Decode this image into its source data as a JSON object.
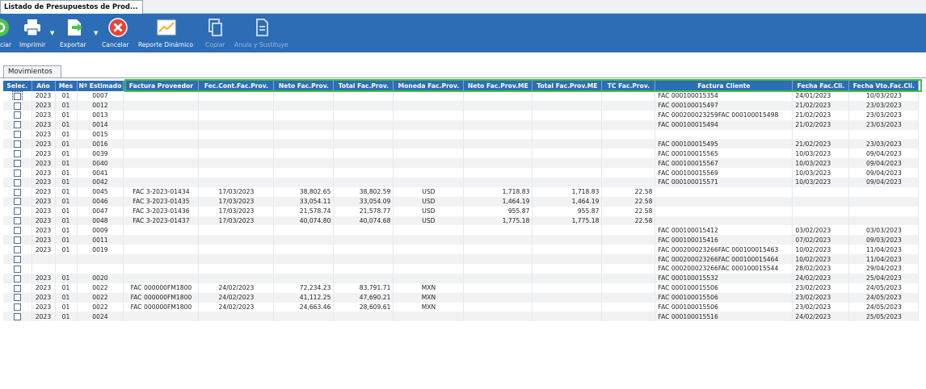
{
  "window": {
    "tab_title": "Listado de Presupuestos de Prod..."
  },
  "toolbar": {
    "buttons": [
      {
        "label": "ciar",
        "icon": "refresh-icon"
      },
      {
        "label": "Imprimir",
        "icon": "printer-icon"
      },
      {
        "label": "Exportar",
        "icon": "export-icon"
      },
      {
        "label": "Cancelar",
        "icon": "cancel-icon"
      },
      {
        "label": "Reporte Dinámico",
        "icon": "chart-icon"
      },
      {
        "label": "Copiar",
        "icon": "copy-icon"
      },
      {
        "label": "Anula y Sustituye",
        "icon": "replace-icon"
      }
    ]
  },
  "tabs": [
    {
      "label": "Movimientos"
    }
  ],
  "grid": {
    "columns": [
      "Selec.",
      "Año",
      "Mes",
      "Nº Estimado",
      "Factura Proveedor",
      "Fec.Cont.Fac.Prov.",
      "Neto Fac.Prov.",
      "Total Fac.Prov.",
      "Moneda Fac.Prov.",
      "Neto Fac.Prov.ME",
      "Total Fac.Prov.ME",
      "TC Fac.Prov.",
      "Factura Cliente",
      "Fecha Fac.Cli.",
      "Fecha Vto.Fac.Cli."
    ],
    "rows": [
      [
        "",
        "2023",
        "01",
        "0007",
        "",
        "",
        "",
        "",
        "",
        "",
        "",
        "",
        "FAC 000100015354",
        "24/01/2023",
        "10/03/2023"
      ],
      [
        "",
        "2023",
        "01",
        "0012",
        "",
        "",
        "",
        "",
        "",
        "",
        "",
        "",
        "FAC 000100015497",
        "21/02/2023",
        "23/03/2023"
      ],
      [
        "",
        "2023",
        "01",
        "0013",
        "",
        "",
        "",
        "",
        "",
        "",
        "",
        "",
        "FAC 000200023259FAC 000100015498",
        "21/02/2023",
        "23/03/2023"
      ],
      [
        "",
        "2023",
        "01",
        "0014",
        "",
        "",
        "",
        "",
        "",
        "",
        "",
        "",
        "FAC 000100015494",
        "21/02/2023",
        "23/03/2023"
      ],
      [
        "",
        "2023",
        "01",
        "0015",
        "",
        "",
        "",
        "",
        "",
        "",
        "",
        "",
        "",
        "",
        ""
      ],
      [
        "",
        "2023",
        "01",
        "0016",
        "",
        "",
        "",
        "",
        "",
        "",
        "",
        "",
        "FAC 000100015495",
        "21/02/2023",
        "23/03/2023"
      ],
      [
        "",
        "2023",
        "01",
        "0039",
        "",
        "",
        "",
        "",
        "",
        "",
        "",
        "",
        "FAC 000100015565",
        "10/03/2023",
        "09/04/2023"
      ],
      [
        "",
        "2023",
        "01",
        "0040",
        "",
        "",
        "",
        "",
        "",
        "",
        "",
        "",
        "FAC 000100015567",
        "10/03/2023",
        "09/04/2023"
      ],
      [
        "",
        "2023",
        "01",
        "0041",
        "",
        "",
        "",
        "",
        "",
        "",
        "",
        "",
        "FAC 000100015569",
        "10/03/2023",
        "09/04/2023"
      ],
      [
        "",
        "2023",
        "01",
        "0042",
        "",
        "",
        "",
        "",
        "",
        "",
        "",
        "",
        "FAC 000100015571",
        "10/03/2023",
        "09/04/2023"
      ],
      [
        "",
        "2023",
        "01",
        "0045",
        "FAC 3-2023-01434",
        "17/03/2023",
        "38,802.65",
        "38,802.59",
        "USD",
        "1,718.83",
        "1,718.83",
        "22.58",
        "",
        "",
        ""
      ],
      [
        "",
        "2023",
        "01",
        "0046",
        "FAC 3-2023-01435",
        "17/03/2023",
        "33,054.11",
        "33,054.09",
        "USD",
        "1,464.19",
        "1,464.19",
        "22.58",
        "",
        "",
        ""
      ],
      [
        "",
        "2023",
        "01",
        "0047",
        "FAC 3-2023-01436",
        "17/03/2023",
        "21,578.74",
        "21,578.77",
        "USD",
        "955.87",
        "955.87",
        "22.58",
        "",
        "",
        ""
      ],
      [
        "",
        "2023",
        "01",
        "0048",
        "FAC 3-2023-01437",
        "17/03/2023",
        "40,074.80",
        "40,074.68",
        "USD",
        "1,775.18",
        "1,775.18",
        "22.58",
        "",
        "",
        ""
      ],
      [
        "",
        "2023",
        "01",
        "0009",
        "",
        "",
        "",
        "",
        "",
        "",
        "",
        "",
        "FAC 000100015412",
        "03/02/2023",
        "03/03/2023"
      ],
      [
        "",
        "2023",
        "01",
        "0011",
        "",
        "",
        "",
        "",
        "",
        "",
        "",
        "",
        "FAC 000100015416",
        "07/02/2023",
        "09/03/2023"
      ],
      [
        "",
        "2023",
        "01",
        "0019",
        "",
        "",
        "",
        "",
        "",
        "",
        "",
        "",
        "FAC 000200023266FAC 000100015463",
        "10/02/2023",
        "11/04/2023"
      ],
      [
        "",
        "",
        "",
        "",
        "",
        "",
        "",
        "",
        "",
        "",
        "",
        "",
        "FAC 000200023266FAC 000100015464",
        "10/02/2023",
        "11/04/2023"
      ],
      [
        "",
        "",
        "",
        "",
        "",
        "",
        "",
        "",
        "",
        "",
        "",
        "",
        "FAC 000200023266FAC 000100015544",
        "28/02/2023",
        "29/04/2023"
      ],
      [
        "",
        "2023",
        "01",
        "0020",
        "",
        "",
        "",
        "",
        "",
        "",
        "",
        "",
        "FAC 000100015532",
        "24/02/2023",
        "25/04/2023"
      ],
      [
        "",
        "2023",
        "01",
        "0022",
        "FAC 000000FM1800",
        "24/02/2023",
        "72,234.23",
        "83,791.71",
        "MXN",
        "",
        "",
        "",
        "FAC 000100015506",
        "23/02/2023",
        "24/05/2023"
      ],
      [
        "",
        "2023",
        "01",
        "0022",
        "FAC 000000FM1800",
        "24/02/2023",
        "41,112.25",
        "47,690.21",
        "MXN",
        "",
        "",
        "",
        "FAC 000100015506",
        "23/02/2023",
        "24/05/2023"
      ],
      [
        "",
        "2023",
        "01",
        "0022",
        "FAC 000000FM1800",
        "24/02/2023",
        "24,663.46",
        "28,609.61",
        "MXN",
        "",
        "",
        "",
        "FAC 000100015506",
        "23/02/2023",
        "24/05/2023"
      ],
      [
        "",
        "2023",
        "01",
        "0024",
        "",
        "",
        "",
        "",
        "",
        "",
        "",
        "",
        "FAC 000100015516",
        "24/02/2023",
        "25/05/2023"
      ]
    ]
  },
  "colors": {
    "toolbar_bg": "#2d6db5",
    "header_bg": "#2d6db5",
    "highlight_frame": "#3ac33a",
    "row_alt": "#f1f2f4"
  }
}
